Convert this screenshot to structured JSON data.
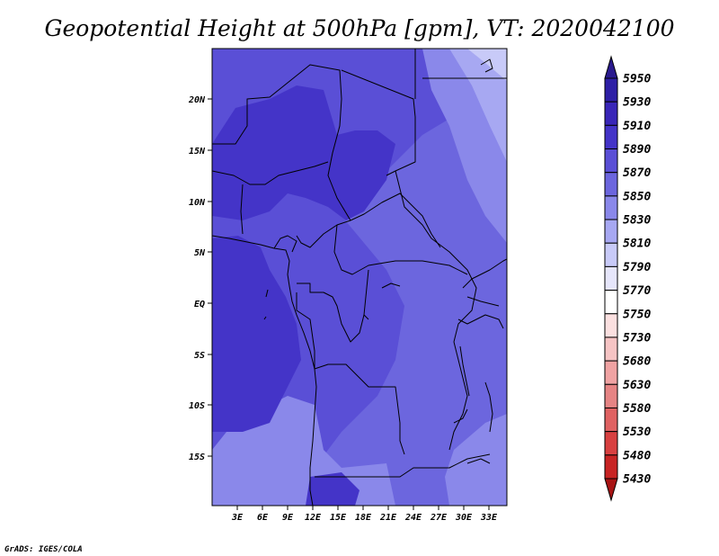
{
  "title": "Geopotential Height at 500hPa [gpm], VT: 2020042100",
  "credit": "GrADS: IGES/COLA",
  "map": {
    "lat_labels": [
      "20N",
      "15N",
      "10N",
      "5N",
      "EQ",
      "5S",
      "10S",
      "15S"
    ],
    "lon_labels": [
      "3E",
      "6E",
      "9E",
      "12E",
      "15E",
      "18E",
      "21E",
      "24E",
      "27E",
      "30E",
      "33E"
    ],
    "fill_colors": {
      "level_5890": "#4434c8",
      "level_5870": "#5a4fd6",
      "level_5850": "#6c66de",
      "level_5830": "#8a88ea",
      "level_5810": "#a7a8f2",
      "level_5790": "#c8caf8"
    }
  },
  "colorbar": {
    "labels": [
      "5950",
      "5930",
      "5910",
      "5890",
      "5870",
      "5850",
      "5830",
      "5810",
      "5790",
      "5770",
      "5750",
      "5730",
      "5680",
      "5630",
      "5580",
      "5530",
      "5480",
      "5430"
    ],
    "colors": [
      "#2a1a8e",
      "#2e1fa6",
      "#3926b8",
      "#4434c8",
      "#5a4fd6",
      "#6c66de",
      "#8a88ea",
      "#a7a8f2",
      "#c8caf8",
      "#e6e6fb",
      "#ffffff",
      "#fbe0e0",
      "#f6c4c4",
      "#f0a3a3",
      "#e68484",
      "#e06262",
      "#d84040",
      "#c82424",
      "#a81414"
    ]
  }
}
